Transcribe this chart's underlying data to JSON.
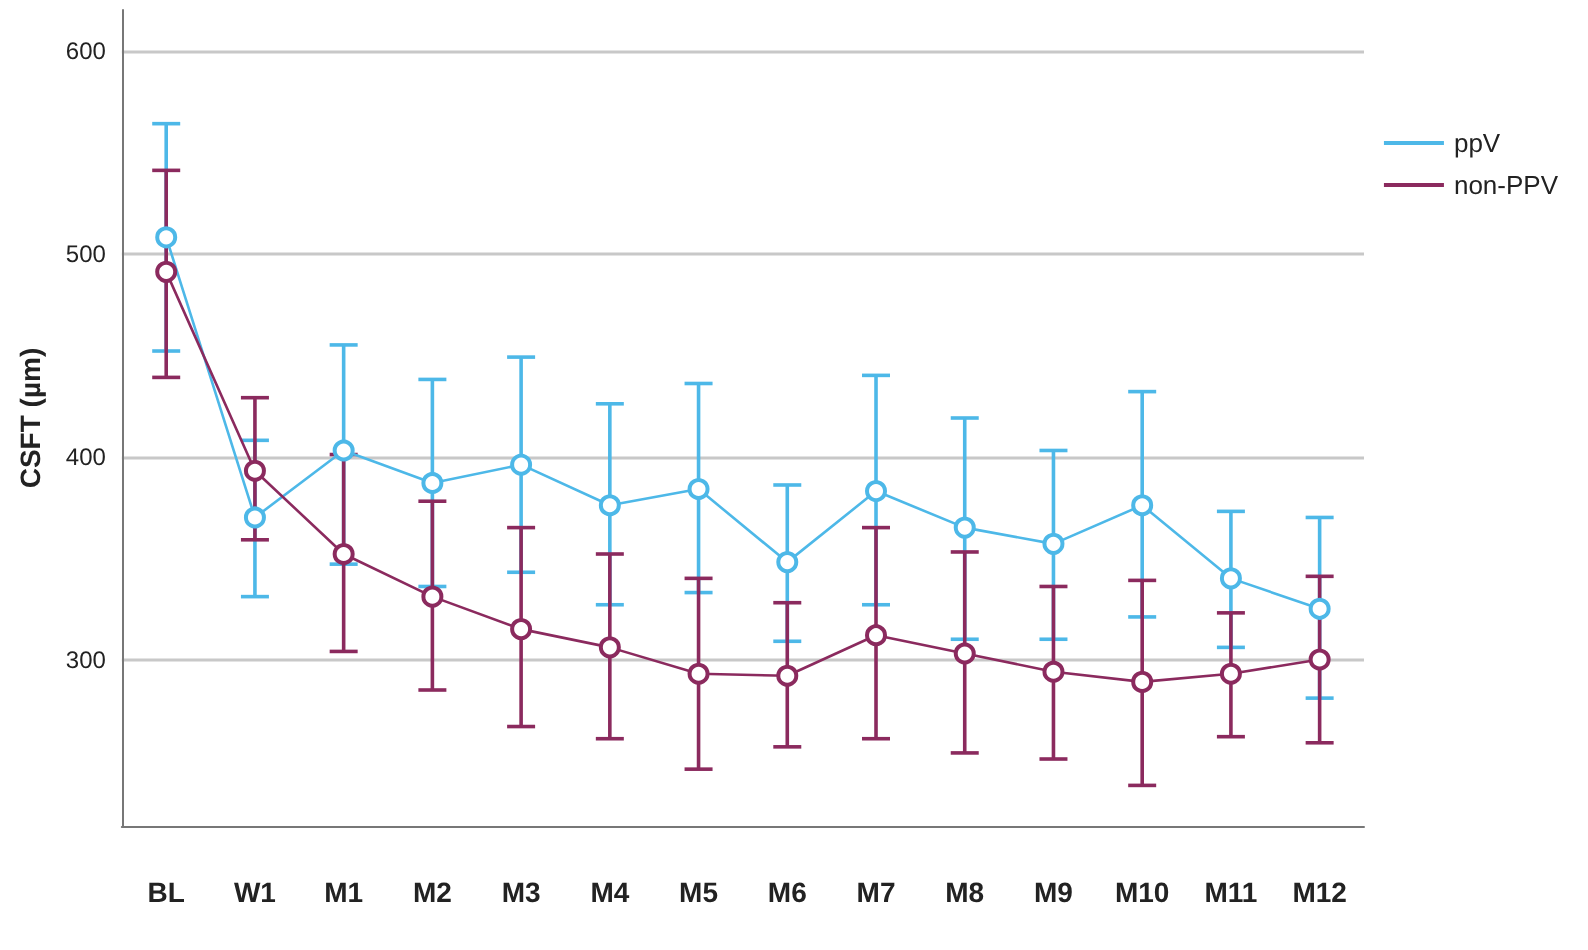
{
  "chart_data": {
    "type": "line",
    "ylabel": "CSFT (µm)",
    "categories": [
      "BL",
      "W1",
      "M1",
      "M2",
      "M3",
      "M4",
      "M5",
      "M6",
      "M7",
      "M8",
      "M9",
      "M10",
      "M11",
      "M12"
    ],
    "ylim": [
      218,
      620
    ],
    "yticks": [
      300,
      400,
      500,
      600
    ],
    "grid": "y",
    "legend": "right",
    "marker": "circle",
    "line_style": "solid",
    "series": [
      {
        "name": "ppV",
        "color": "#4db8e8",
        "values": [
          508,
          370,
          403,
          387,
          396,
          376,
          384,
          348,
          383,
          365,
          357,
          376,
          340,
          325
        ],
        "errors": [
          [
            452,
            564
          ],
          [
            331,
            408
          ],
          [
            347,
            455
          ],
          [
            336,
            438
          ],
          [
            343,
            449
          ],
          [
            327,
            426
          ],
          [
            333,
            436
          ],
          [
            309,
            386
          ],
          [
            327,
            440
          ],
          [
            310,
            419
          ],
          [
            310,
            403
          ],
          [
            321,
            432
          ],
          [
            306,
            373
          ],
          [
            281,
            370
          ]
        ]
      },
      {
        "name": "non-PPV",
        "color": "#8b2a5e",
        "values": [
          491,
          393,
          352,
          331,
          315,
          306,
          293,
          292,
          312,
          303,
          294,
          289,
          293,
          300
        ],
        "errors": [
          [
            439,
            541
          ],
          [
            359,
            429
          ],
          [
            304,
            401
          ],
          [
            285,
            378
          ],
          [
            267,
            365
          ],
          [
            261,
            352
          ],
          [
            246,
            340
          ],
          [
            257,
            328
          ],
          [
            261,
            365
          ],
          [
            254,
            353
          ],
          [
            251,
            336
          ],
          [
            238,
            339
          ],
          [
            262,
            323
          ],
          [
            259,
            341
          ]
        ]
      }
    ]
  }
}
